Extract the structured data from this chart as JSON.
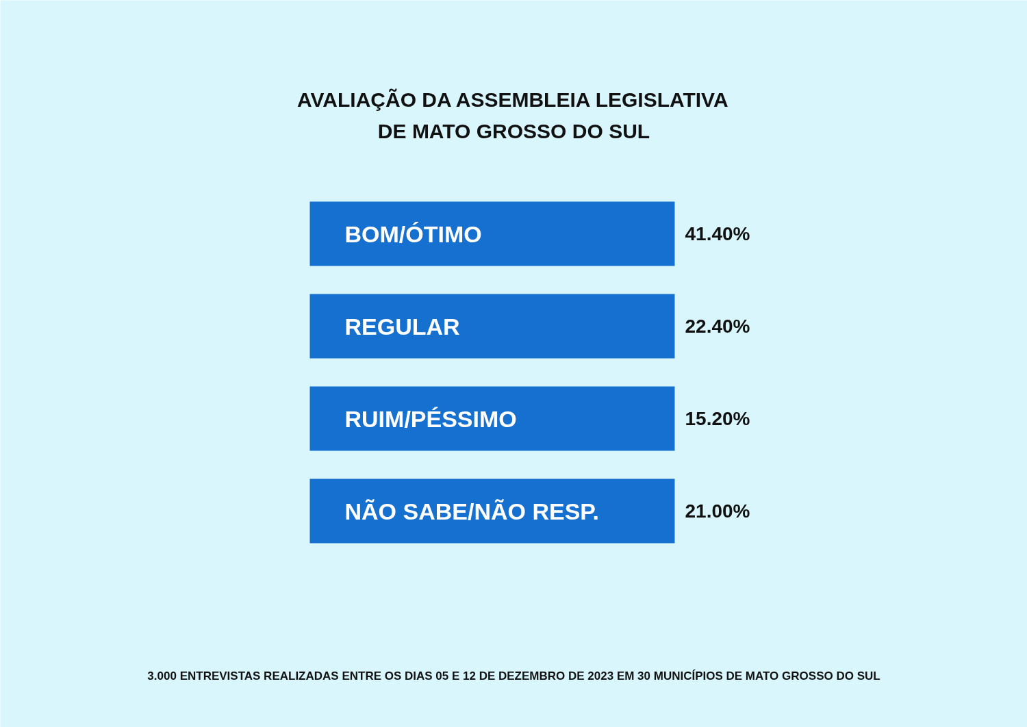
{
  "chart_data": {
    "type": "other",
    "title": "AVALIAÇÃO DA ASSEMBLEIA LEGISLATIVA\nDE MATO GROSSO DO SUL",
    "categories": [
      "BOM/ÓTIMO",
      "REGULAR",
      "RUIM/PÉSSIMO",
      "NÃO SABE/NÃO RESP."
    ],
    "values": [
      41.4,
      22.4,
      15.2,
      21.0
    ],
    "value_labels": [
      "41.40%",
      "22.40%",
      "15.20%",
      "21.00%"
    ],
    "color": "#1670d0",
    "annotations": [
      "3.000 ENTREVISTAS REALIZADAS ENTRE OS DIAS 05 E 12 DE DEZEMBRO DE 2023 EM 30 MUNICÍPIOS DE MATO GROSSO DO SUL"
    ]
  }
}
